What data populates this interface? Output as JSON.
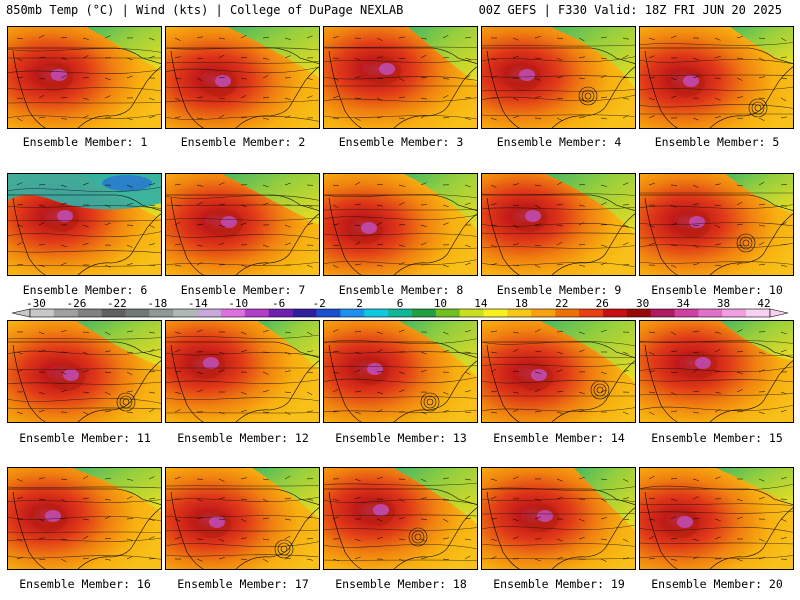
{
  "header": {
    "left": "850mb Temp (°C) | Wind (kts) | College of DuPage NEXLAB",
    "right": "00Z GEFS | F330 Valid: 18Z FRI JUN 20 2025"
  },
  "panel_label_prefix": "Ensemble Member: ",
  "members": [
    1,
    2,
    3,
    4,
    5,
    6,
    7,
    8,
    9,
    10,
    11,
    12,
    13,
    14,
    15,
    16,
    17,
    18,
    19,
    20
  ],
  "colorbar": {
    "labels": [
      "-30",
      "-26",
      "-22",
      "-18",
      "-14",
      "-10",
      "-6",
      "-2",
      "2",
      "6",
      "10",
      "14",
      "18",
      "22",
      "26",
      "30",
      "34",
      "38",
      "42"
    ],
    "colors": [
      "#c8c8c8",
      "#a0a0a0",
      "#808080",
      "#606060",
      "#707878",
      "#909898",
      "#b0b8b8",
      "#c8a8d8",
      "#e070e0",
      "#b040c8",
      "#7020b0",
      "#3020a0",
      "#1850d0",
      "#2090f0",
      "#10c8e0",
      "#10b898",
      "#20a040",
      "#70c020",
      "#c8e020",
      "#f8f020",
      "#f8c818",
      "#f8a010",
      "#f07008",
      "#e84010",
      "#c81010",
      "#980808",
      "#b01860",
      "#d040a0",
      "#e070c8",
      "#f0a0e0",
      "#f8d0f0"
    ]
  },
  "overlays": {
    "lows": [
      4,
      5,
      10,
      11,
      13,
      14,
      17,
      18
    ]
  }
}
